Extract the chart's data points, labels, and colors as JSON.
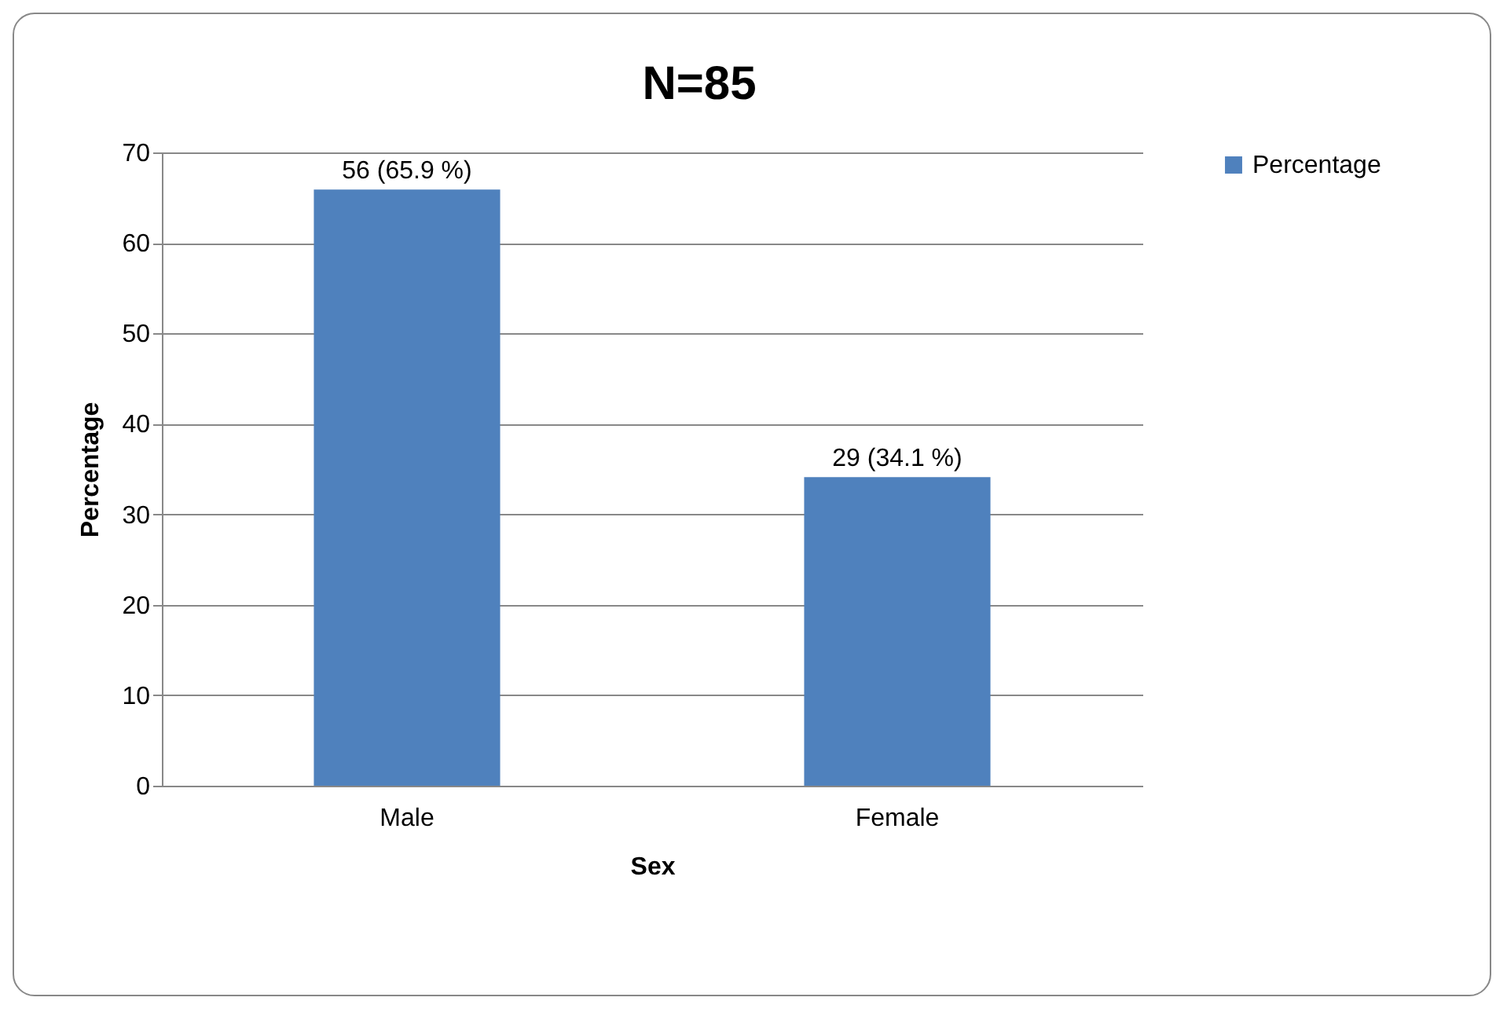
{
  "chart_data": {
    "type": "bar",
    "title": "N=85",
    "xlabel": "Sex",
    "ylabel": "Percentage",
    "categories": [
      "Male",
      "Female"
    ],
    "series": [
      {
        "name": "Percentage",
        "color": "#4f81bd",
        "values": [
          65.9,
          34.1
        ],
        "value_labels": [
          "56 (65.9  %)",
          "29 (34.1  %)"
        ]
      }
    ],
    "ylim": [
      0,
      70
    ],
    "yticks": [
      0,
      10,
      20,
      30,
      40,
      50,
      60,
      70
    ],
    "grid": "y",
    "legend": "right"
  }
}
